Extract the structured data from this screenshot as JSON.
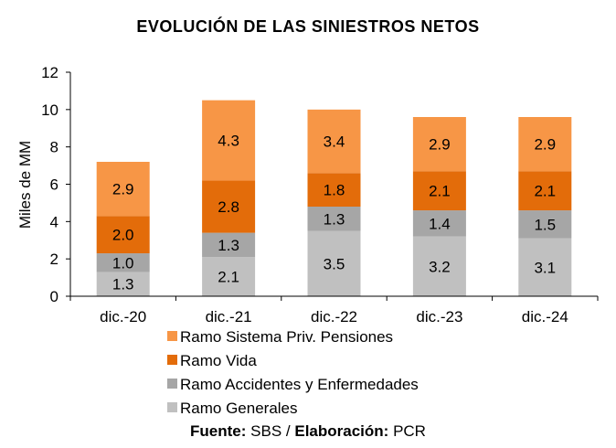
{
  "chart_data": {
    "type": "bar",
    "stacked": true,
    "title": "EVOLUCIÓN DE LAS SINIESTROS NETOS",
    "ylabel": "Miles de MM",
    "xlabel": "",
    "ylim": [
      0,
      12
    ],
    "yticks": [
      0,
      2,
      4,
      6,
      8,
      10,
      12
    ],
    "grid": false,
    "legend_position": "bottom",
    "categories": [
      "dic.-20",
      "dic.-21",
      "dic.-22",
      "dic.-23",
      "dic.-24"
    ],
    "series": [
      {
        "name": "Ramo Generales",
        "color": "#c0c0c0",
        "values": [
          1.3,
          2.1,
          3.5,
          3.2,
          3.1
        ]
      },
      {
        "name": "Ramo Accidentes y Enfermedades",
        "color": "#a6a6a6",
        "values": [
          1.0,
          1.3,
          1.3,
          1.4,
          1.5
        ]
      },
      {
        "name": "Ramo Vida",
        "color": "#e36c0a",
        "values": [
          2.0,
          2.8,
          1.8,
          2.1,
          2.1
        ]
      },
      {
        "name": "Ramo Sistema Priv. Pensiones",
        "color": "#f79646",
        "values": [
          2.9,
          4.3,
          3.4,
          2.9,
          2.9
        ]
      }
    ],
    "legend_order": [
      "Ramo Sistema Priv. Pensiones",
      "Ramo Vida",
      "Ramo Accidentes y Enfermedades",
      "Ramo Generales"
    ],
    "source": {
      "label1": "Fuente:",
      "value1": "SBS /",
      "label2": "Elaboración:",
      "value2": "PCR"
    }
  }
}
